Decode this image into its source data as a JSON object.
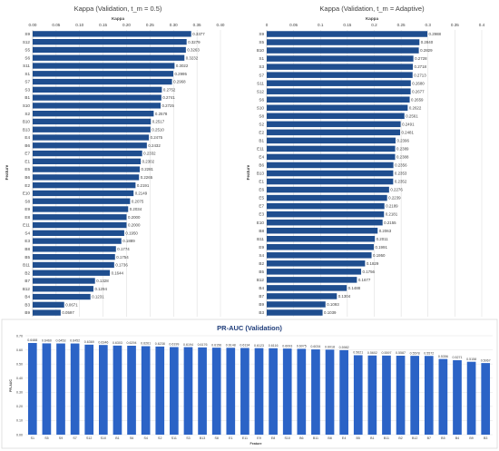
{
  "chart_data": [
    {
      "type": "bar",
      "orientation": "horizontal",
      "title": "Kappa (Validation, t_m = 0.5)",
      "xlabel": "Kappa",
      "ylabel": "Feature",
      "xlim": [
        0,
        0.4
      ],
      "xticks": [
        "0.00",
        "0.05",
        "0.10",
        "0.15",
        "0.20",
        "0.25",
        "0.30",
        "0.35",
        "0.40"
      ],
      "grid": true,
      "color": "#1f4e8f",
      "categories": [
        "S9",
        "S12",
        "S5",
        "S6",
        "S11",
        "S1",
        "S7",
        "S3",
        "B1",
        "S10",
        "S2",
        "B10",
        "B13",
        "E4",
        "B6",
        "E7",
        "E1",
        "E5",
        "B6",
        "E2",
        "E10",
        "S8",
        "E9",
        "E8",
        "E11",
        "S4",
        "E3",
        "B8",
        "B5",
        "B11",
        "B2",
        "B7",
        "B12",
        "B4",
        "B3",
        "B9"
      ],
      "values": [
        0.3377,
        0.3279,
        0.3263,
        0.3232,
        0.3022,
        0.2995,
        0.2968,
        0.2752,
        0.2741,
        0.2725,
        0.2578,
        0.2517,
        0.251,
        0.2475,
        0.2432,
        0.2332,
        0.2302,
        0.2281,
        0.2265,
        0.2191,
        0.2149,
        0.2075,
        0.2034,
        0.2,
        0.2,
        0.195,
        0.1889,
        0.1774,
        0.1754,
        0.1736,
        0.1644,
        0.1328,
        0.1294,
        0.1231,
        0.0671,
        0.0597
      ],
      "labels": [
        "0.3377",
        "0.3279",
        "0.3263",
        "0.3232",
        "0.3022",
        "0.2995",
        "0.2968",
        "0.2752",
        "0.2741",
        "0.2725",
        "0.2578",
        "0.2517",
        "0.2510",
        "0.2475",
        "0.2432",
        "0.2332",
        "0.2302",
        "0.2281",
        "0.2265",
        "0.2191",
        "0.2149",
        "0.2075",
        "0.2034",
        "0.2000",
        "0.2000",
        "0.1950",
        "0.1889",
        "0.1774",
        "0.1754",
        "0.1736",
        "0.1644",
        "0.1328",
        "0.1294",
        "0.1231",
        "0.0671",
        "0.0597"
      ]
    },
    {
      "type": "bar",
      "orientation": "horizontal",
      "title": "Kappa (Validation, t_m = Adaptive)",
      "xlabel": "Kappa",
      "ylabel": "Feature",
      "xlim": [
        0,
        0.4
      ],
      "xticks": [
        "0",
        "0.05",
        "0.1",
        "0.15",
        "0.2",
        "0.25",
        "0.3",
        "0.35",
        "0.4"
      ],
      "grid": true,
      "color": "#1f4e8f",
      "categories": [
        "S9",
        "S5",
        "B10",
        "S1",
        "S3",
        "S7",
        "S11",
        "S12",
        "S6",
        "S10",
        "S8",
        "S2",
        "E2",
        "B1",
        "E11",
        "E4",
        "B6",
        "B13",
        "E1",
        "E6",
        "E5",
        "E7",
        "E3",
        "E10",
        "B8",
        "B11",
        "E9",
        "S4",
        "B2",
        "B5",
        "B12",
        "B4",
        "B7",
        "B9",
        "B3"
      ],
      "values": [
        0.2988,
        0.284,
        0.2829,
        0.2728,
        0.2718,
        0.2713,
        0.268,
        0.2677,
        0.2659,
        0.2622,
        0.2561,
        0.2491,
        0.2481,
        0.2396,
        0.2389,
        0.2388,
        0.2356,
        0.2353,
        0.2352,
        0.2276,
        0.2239,
        0.2189,
        0.2181,
        0.2155,
        0.2063,
        0.2011,
        0.1991,
        0.195,
        0.1829,
        0.1756,
        0.1677,
        0.1488,
        0.1304,
        0.1093,
        0.1039
      ],
      "labels": [
        "0.2988",
        "0.2840",
        "0.2829",
        "0.2728",
        "0.2718",
        "0.2713",
        "0.2680",
        "0.2677",
        "0.2659",
        "0.2622",
        "0.2561",
        "0.2491",
        "0.2481",
        "0.2396",
        "0.2389",
        "0.2388",
        "0.2356",
        "0.2353",
        "0.2352",
        "0.2276",
        "0.2239",
        "0.2189",
        "0.2181",
        "0.2155",
        "0.2063",
        "0.2011",
        "0.1991",
        "0.1950",
        "0.1829",
        "0.1756",
        "0.1677",
        "0.1488",
        "0.1304",
        "0.1093",
        "0.1039"
      ]
    },
    {
      "type": "bar",
      "orientation": "vertical",
      "title": "PR-AUC (Validation)",
      "xlabel": "Feature",
      "ylabel": "PR-AUC",
      "ylim": [
        0,
        0.7
      ],
      "yticks": [
        "0.00",
        "0.10",
        "0.20",
        "0.30",
        "0.40",
        "0.50",
        "0.60",
        "0.70"
      ],
      "grid": true,
      "color": "#2b63c6",
      "categories": [
        "S1",
        "S5",
        "S9",
        "S7",
        "S12",
        "S10",
        "B1",
        "S6",
        "S4",
        "S2",
        "S11",
        "S3",
        "B13",
        "S8",
        "E1",
        "E11",
        "E9",
        "E8",
        "S10",
        "B6",
        "B11",
        "B8",
        "E4",
        "B5",
        "B1",
        "B11",
        "B2",
        "B12",
        "B7",
        "B5",
        "B4",
        "B9",
        "B3"
      ],
      "values": [
        0.6488,
        0.646,
        0.6453,
        0.6452,
        0.6369,
        0.6346,
        0.6303,
        0.6294,
        0.6261,
        0.6238,
        0.6199,
        0.6194,
        0.6176,
        0.6156,
        0.6148,
        0.6134,
        0.6123,
        0.6116,
        0.6093,
        0.6075,
        0.6034,
        0.6018,
        0.5982,
        0.5621,
        0.5602,
        0.5597,
        0.5587,
        0.5578,
        0.5572,
        0.5356,
        0.5271,
        0.5158,
        0.5067
      ],
      "labels": [
        "0.6488",
        "0.6460",
        "0.6453",
        "0.6452",
        "0.6369",
        "0.6346",
        "0.6303",
        "0.6294",
        "0.6261",
        "0.6238",
        "0.6199",
        "0.6194",
        "0.6176",
        "0.6156",
        "0.6148",
        "0.6134",
        "0.6123",
        "0.6116",
        "0.6093",
        "0.6075",
        "0.6034",
        "0.6018",
        "0.5982",
        "0.5621",
        "0.5602",
        "0.5597",
        "0.5587",
        "0.5578",
        "0.5572",
        "0.5356",
        "0.5271",
        "0.5158",
        "0.5067"
      ]
    }
  ]
}
